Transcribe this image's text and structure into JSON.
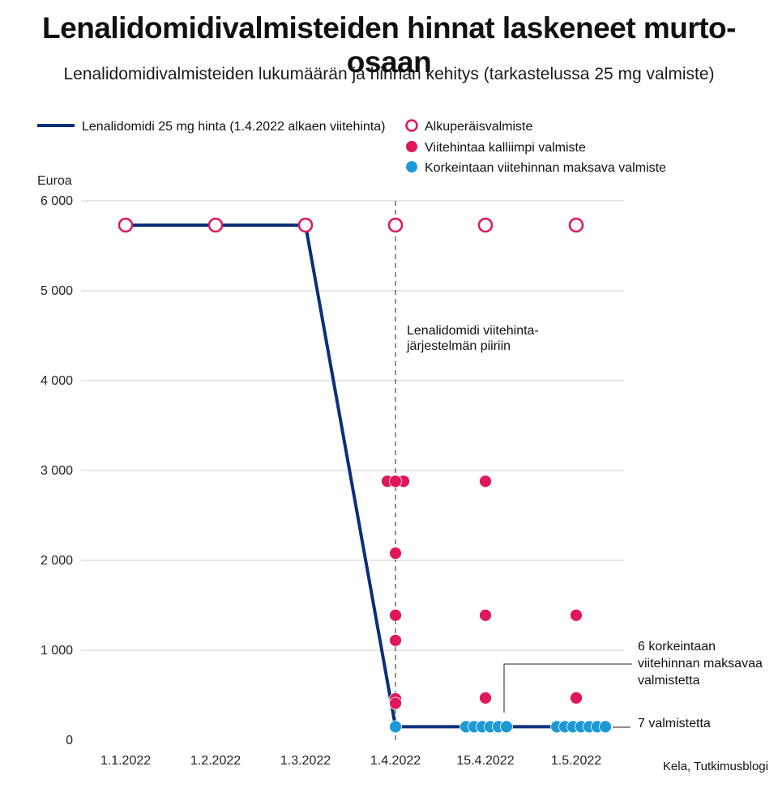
{
  "title": "Lenalidomidivalmisteiden hinnat laskeneet murto-osaan",
  "subtitle": "Lenalidomidivalmisteiden lukumäärän ja hinnan kehitys (tarkastelussa 25 mg valmiste)",
  "source": "Kela, Tutkimusblogi",
  "colors": {
    "line": "#0b2f7a",
    "original": "#e0175b",
    "expensive": "#e0175b",
    "cheap": "#1d9ad6",
    "grid": "#cfcfcf"
  },
  "chart_data": {
    "type": "scatter",
    "ylabel": "Euroa",
    "ylim": [
      0,
      6000
    ],
    "yticks": [
      {
        "value": 0,
        "label": "0"
      },
      {
        "value": 1000,
        "label": "1 000"
      },
      {
        "value": 2000,
        "label": "2 000"
      },
      {
        "value": 3000,
        "label": "3 000"
      },
      {
        "value": 4000,
        "label": "4 000"
      },
      {
        "value": 5000,
        "label": "5 000"
      },
      {
        "value": 6000,
        "label": "6 000"
      }
    ],
    "categories": [
      "1.1.2022",
      "1.2.2022",
      "1.3.2022",
      "1.4.2022",
      "15.4.2022",
      "1.5.2022"
    ],
    "legend": [
      {
        "key": "line",
        "label": "Lenalidomidi 25 mg hinta (1.4.2022 alkaen viitehinta)"
      },
      {
        "key": "original",
        "label": "Alkuperäisvalmiste"
      },
      {
        "key": "expensive",
        "label": "Viitehintaa kalliimpi valmiste"
      },
      {
        "key": "cheap",
        "label": "Korkeintaan viitehinnan maksava valmiste"
      }
    ],
    "price_line": [
      {
        "x": "1.1.2022",
        "y": 5730
      },
      {
        "x": "1.2.2022",
        "y": 5730
      },
      {
        "x": "1.3.2022",
        "y": 5730
      },
      {
        "x": "1.4.2022",
        "y": 150
      },
      {
        "x": "15.4.2022",
        "y": 150
      },
      {
        "x": "1.5.2022",
        "y": 150
      }
    ],
    "series": [
      {
        "key": "original",
        "name": "Alkuperäisvalmiste",
        "points": [
          {
            "x": "1.1.2022",
            "y": 5730
          },
          {
            "x": "1.2.2022",
            "y": 5730
          },
          {
            "x": "1.3.2022",
            "y": 5730
          },
          {
            "x": "1.4.2022",
            "y": 5730
          },
          {
            "x": "15.4.2022",
            "y": 5730
          },
          {
            "x": "1.5.2022",
            "y": 5730
          }
        ]
      },
      {
        "key": "expensive",
        "name": "Viitehintaa kalliimpi valmiste",
        "points": [
          {
            "x": "1.4.2022",
            "y": 2880
          },
          {
            "x": "1.4.2022",
            "y": 2880
          },
          {
            "x": "1.4.2022",
            "y": 2880
          },
          {
            "x": "1.4.2022",
            "y": 2080
          },
          {
            "x": "1.4.2022",
            "y": 1390
          },
          {
            "x": "1.4.2022",
            "y": 1110
          },
          {
            "x": "1.4.2022",
            "y": 460
          },
          {
            "x": "1.4.2022",
            "y": 410
          },
          {
            "x": "15.4.2022",
            "y": 2880
          },
          {
            "x": "15.4.2022",
            "y": 1390
          },
          {
            "x": "15.4.2022",
            "y": 470
          },
          {
            "x": "1.5.2022",
            "y": 1390
          },
          {
            "x": "1.5.2022",
            "y": 470
          }
        ]
      },
      {
        "key": "cheap",
        "name": "Korkeintaan viitehinnan maksava valmiste",
        "points": [
          {
            "x": "1.4.2022",
            "y": 150
          },
          {
            "x": "15.4.2022",
            "y": 150
          },
          {
            "x": "15.4.2022",
            "y": 150
          },
          {
            "x": "15.4.2022",
            "y": 150
          },
          {
            "x": "15.4.2022",
            "y": 150
          },
          {
            "x": "15.4.2022",
            "y": 150
          },
          {
            "x": "15.4.2022",
            "y": 150
          },
          {
            "x": "1.5.2022",
            "y": 150
          },
          {
            "x": "1.5.2022",
            "y": 150
          },
          {
            "x": "1.5.2022",
            "y": 150
          },
          {
            "x": "1.5.2022",
            "y": 150
          },
          {
            "x": "1.5.2022",
            "y": 150
          },
          {
            "x": "1.5.2022",
            "y": 150
          },
          {
            "x": "1.5.2022",
            "y": 150
          }
        ]
      }
    ],
    "annotations": {
      "reform": [
        "Lenalidomidi viitehinta-",
        "järjestelmän piiriin"
      ],
      "six": [
        "6 korkeintaan",
        "viitehinnan maksavaa",
        "valmistetta"
      ],
      "seven": "7 valmistetta"
    }
  }
}
